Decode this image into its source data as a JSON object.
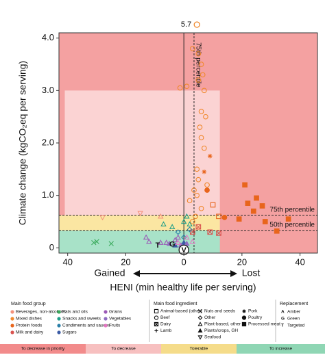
{
  "chart_data": {
    "type": "scatter",
    "xlabel": "HENI (min healthy life per serving)",
    "ylabel": "Climate change (kgCO₂eq per serving)",
    "direction_labels": [
      "Gained",
      "Lost"
    ],
    "xlim": [
      -43,
      46
    ],
    "ylim": [
      -0.1,
      4.1
    ],
    "xticks": [
      {
        "value": -40,
        "label": "40"
      },
      {
        "value": -20,
        "label": "20"
      },
      0,
      20,
      40
    ],
    "yticks": [
      0,
      {
        "value": 1,
        "label": "1.0"
      },
      {
        "value": 2,
        "label": "2.0"
      },
      {
        "value": 3,
        "label": "3.0"
      },
      {
        "value": 4,
        "label": "4.0"
      }
    ],
    "zones": [
      {
        "name": "To decrease in priority",
        "color": "#f4a1a1",
        "legend_color": "#f28b8b",
        "x": [
          -43,
          46
        ],
        "y": [
          -0.1,
          4.1
        ]
      },
      {
        "name": "To decrease",
        "color": "#fbd3d3",
        "legend_color": "#f7c0c0",
        "x": [
          -41,
          12.4
        ],
        "y": [
          0.62,
          3.0
        ]
      },
      {
        "name": "Tolerable",
        "color": "#fbe6a2",
        "legend_color": "#f5dc8a",
        "x": [
          -43,
          12.4
        ],
        "y": [
          0.33,
          0.62
        ]
      },
      {
        "name": "To increase",
        "color": "#a8e2c8",
        "legend_color": "#8fd6b4",
        "x": [
          -43,
          12.4
        ],
        "y": [
          -0.1,
          0.33
        ]
      }
    ],
    "reference_lines": [
      {
        "axis": "x",
        "value": 0,
        "style": "solid"
      },
      {
        "axis": "x",
        "value": 3.5,
        "style": "dashed",
        "label": "75th percentile"
      },
      {
        "axis": "y",
        "value": 0.62,
        "style": "dashed",
        "label": "75th percentile"
      },
      {
        "axis": "y",
        "value": 0.33,
        "style": "dashed",
        "label": "50th percentile"
      }
    ],
    "outlier": {
      "x": 4.5,
      "y": 5.7,
      "color": "#f0892e"
    },
    "annotations": [
      {
        "text": "T",
        "x": -9,
        "y": 0.05
      },
      {
        "text": "G",
        "x": -4,
        "y": 0.07
      },
      {
        "text": "V",
        "x": 0,
        "y": -0.04
      }
    ],
    "series": [
      {
        "name": "Beverages, non-alcoholic",
        "color": "#f4927c",
        "x": [
          -28,
          -15,
          -8
        ],
        "values": [
          0.58,
          0.66,
          0.6
        ],
        "ingredients": [
          "Seafood",
          "Seafood",
          "Plant-based, other"
        ]
      },
      {
        "name": "Mixed dishes",
        "color": "#f0892e",
        "x": [
          3,
          5,
          6,
          6.5,
          5,
          7,
          6,
          7.5,
          5.5,
          6,
          7,
          4.5,
          5,
          3.5,
          2,
          -1.3,
          1,
          6,
          4,
          3,
          8,
          4.5
        ],
        "values": [
          3.8,
          3.7,
          3.5,
          3.3,
          3.2,
          3.0,
          2.6,
          2.5,
          2.3,
          2.1,
          1.9,
          1.5,
          1.3,
          1.1,
          0.9,
          3.05,
          3.08,
          0.75,
          0.6,
          0.5,
          1.2,
          1.0
        ],
        "ingredients": [
          "Beef",
          "Beef",
          "Beef",
          "Beef",
          "Beef",
          "Beef",
          "Beef",
          "Beef",
          "Beef",
          "Beef",
          "Beef",
          "Beef",
          "Beef",
          "Beef",
          "Beef",
          "Beef",
          "Beef",
          "Beef",
          "Beef",
          "Beef",
          "Beef",
          "Beef"
        ]
      },
      {
        "name": "Protein foods",
        "color": "#e8651c",
        "x": [
          21,
          22,
          25,
          28,
          32,
          36,
          24,
          27,
          19,
          9,
          7,
          10,
          12,
          14,
          8
        ],
        "values": [
          1.2,
          0.85,
          0.95,
          0.5,
          0.32,
          0.55,
          0.7,
          0.8,
          0.55,
          1.75,
          1.45,
          0.82,
          0.6,
          0.58,
          1.1
        ],
        "ingredients": [
          "Processed meat",
          "Processed meat",
          "Processed meat",
          "Processed meat",
          "Processed meat",
          "Processed meat",
          "Processed meat",
          "Processed meat",
          "Processed meat",
          "Pork",
          "Pork",
          "Animal-based (other)",
          "Animal-based (other)",
          "Poultry",
          "Poultry"
        ]
      },
      {
        "name": "Milk and dairy",
        "color": "#d9534f",
        "x": [
          3,
          5,
          9,
          12
        ],
        "values": [
          0.3,
          0.4,
          0.3,
          0.28
        ],
        "ingredients": [
          "Dairy",
          "Dairy",
          "Dairy",
          "Dairy"
        ]
      },
      {
        "name": "Fats and oils",
        "color": "#3aaa5c",
        "x": [
          -31,
          -30,
          -25
        ],
        "values": [
          0.1,
          0.12,
          0.08
        ],
        "ingredients": [
          "Nuts and seeds",
          "Nuts and seeds",
          "Nuts and seeds"
        ]
      },
      {
        "name": "Snacks and sweets",
        "color": "#1f9e89",
        "x": [
          -7,
          -4,
          0,
          1,
          2
        ],
        "values": [
          0.45,
          0.4,
          0.5,
          0.6,
          0.45
        ],
        "ingredients": [
          "Plant-based, other",
          "Plant-based, other",
          "Plant-based, other",
          "Plant-based, other",
          "Plant-based, other"
        ]
      },
      {
        "name": "Condiments and sauces",
        "color": "#2a7fa8",
        "x": [
          -2,
          0,
          2
        ],
        "values": [
          0.3,
          0.2,
          0.35
        ],
        "ingredients": [
          "Other",
          "Other",
          "Other"
        ]
      },
      {
        "name": "Sugars",
        "color": "#3b5ba5",
        "x": [
          -3,
          0
        ],
        "values": [
          0.05,
          0.1
        ],
        "ingredients": [
          "Plants/crops, GH",
          "Plants/crops, GH"
        ]
      },
      {
        "name": "Grains",
        "color": "#9b59b6",
        "x": [
          -13,
          -12,
          -8,
          -6,
          -3,
          -2
        ],
        "values": [
          0.2,
          0.12,
          0.1,
          0.1,
          0.15,
          0.2
        ],
        "ingredients": [
          "Plant-based, other",
          "Plant-based, other",
          "Plant-based, other",
          "Plant-based, other",
          "Plant-based, other",
          "Plant-based, other"
        ]
      },
      {
        "name": "Vegetables",
        "color": "#8e6cc0",
        "x": [
          -5,
          -1,
          1
        ],
        "values": [
          0.08,
          0.05,
          0.08
        ],
        "ingredients": [
          "Plants/crops, GH",
          "Plants/crops, GH",
          "Plants/crops, GH"
        ]
      },
      {
        "name": "Fruits",
        "color": "#e377c2",
        "x": [
          -2,
          1,
          3
        ],
        "values": [
          0.1,
          0.2,
          0.12
        ],
        "ingredients": [
          "Plant-based, other",
          "Plant-based, other",
          "Plant-based, other"
        ]
      }
    ],
    "legend": {
      "groups_title": "Main food group",
      "ingredients_title": "Main food ingredient",
      "ingredients": [
        {
          "name": "Animal-based (other)",
          "marker": "square-open"
        },
        {
          "name": "Beef",
          "marker": "circle-open"
        },
        {
          "name": "Dairy",
          "marker": "square-x"
        },
        {
          "name": "Lamb",
          "marker": "plus"
        },
        {
          "name": "Nuts and seeds",
          "marker": "x"
        },
        {
          "name": "Other",
          "marker": "diamond-open"
        },
        {
          "name": "Plant-based, other",
          "marker": "triangle-open"
        },
        {
          "name": "Plants/crops, GH",
          "marker": "triangle-filled"
        },
        {
          "name": "Seafood",
          "marker": "triangle-down-open"
        },
        {
          "name": "Pork",
          "marker": "asterisk"
        },
        {
          "name": "Poultry",
          "marker": "circle-filled"
        },
        {
          "name": "Processed meat",
          "marker": "square-filled"
        }
      ],
      "replacement_title": "Replacement",
      "replacement": [
        {
          "letter": "A",
          "name": "Amber"
        },
        {
          "letter": "G",
          "name": "Green"
        },
        {
          "letter": "T",
          "name": "Targeted"
        }
      ]
    }
  }
}
